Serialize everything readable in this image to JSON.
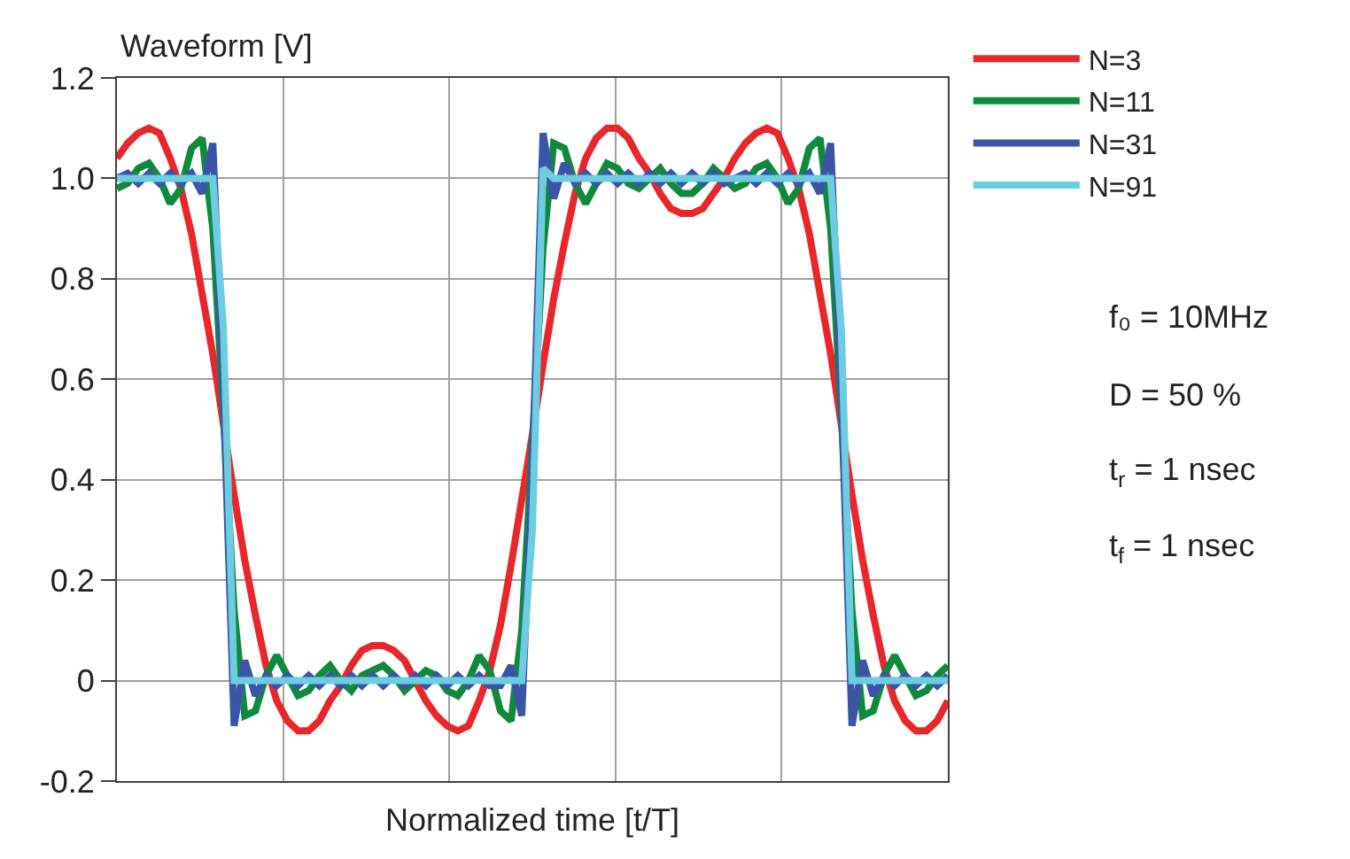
{
  "chart_data": {
    "type": "line",
    "xlabel": "Normalized time [t/T]",
    "ylabel": "Waveform [V]",
    "categories": [
      null,
      null,
      null,
      null,
      null,
      null,
      null,
      null,
      null,
      null,
      null,
      null,
      null,
      null,
      null,
      null,
      null,
      null,
      null,
      null,
      null,
      null,
      null,
      null,
      null,
      null,
      null,
      null,
      null,
      null,
      null,
      null,
      null,
      null,
      null,
      null,
      null,
      null,
      null,
      null,
      null,
      null,
      null,
      null,
      null,
      null,
      null,
      null,
      null,
      null,
      null,
      null,
      null,
      null,
      null,
      null,
      null,
      null,
      null,
      null,
      null,
      null,
      null,
      null,
      null,
      null,
      null,
      null,
      null,
      null,
      null,
      null,
      null,
      null,
      null,
      null,
      null,
      null,
      null
    ],
    "series": [
      {
        "name": "N=3",
        "color": "#e8262b",
        "values": [
          1.04,
          1.07,
          1.09,
          1.1,
          1.09,
          1.04,
          0.98,
          0.89,
          0.77,
          0.65,
          0.51,
          0.37,
          0.24,
          0.13,
          0.03,
          -0.04,
          -0.08,
          -0.1,
          -0.1,
          -0.08,
          -0.04,
          -0.01,
          0.03,
          0.06,
          0.07,
          0.07,
          0.06,
          0.04,
          0.0,
          -0.04,
          -0.07,
          -0.09,
          -0.1,
          -0.09,
          -0.04,
          0.02,
          0.11,
          0.23,
          0.36,
          0.49,
          0.63,
          0.76,
          0.87,
          0.97,
          1.04,
          1.08,
          1.1,
          1.1,
          1.08,
          1.04,
          1.01,
          0.97,
          0.94,
          0.93,
          0.93,
          0.94,
          0.97,
          1.0,
          1.04,
          1.07,
          1.09,
          1.1,
          1.09,
          1.04,
          0.98,
          0.89,
          0.77,
          0.65,
          0.51,
          0.37,
          0.24,
          0.13,
          0.03,
          -0.04,
          -0.08,
          -0.1,
          -0.1,
          -0.08,
          -0.04
        ]
      },
      {
        "name": "N=11",
        "color": "#0f8a3c",
        "values": [
          0.98,
          0.99,
          1.02,
          1.03,
          1.0,
          0.95,
          0.98,
          1.06,
          1.08,
          0.9,
          0.53,
          0.14,
          -0.07,
          -0.06,
          0.01,
          0.05,
          0.01,
          -0.03,
          -0.02,
          0.01,
          0.03,
          0.0,
          -0.02,
          0.01,
          0.02,
          0.03,
          0.01,
          -0.02,
          0.0,
          0.02,
          0.01,
          -0.02,
          -0.03,
          0.0,
          0.05,
          0.02,
          -0.06,
          -0.08,
          0.1,
          0.47,
          0.86,
          1.07,
          1.06,
          0.99,
          0.95,
          0.99,
          1.03,
          1.02,
          0.99,
          0.98,
          1.0,
          1.02,
          0.99,
          0.97,
          0.97,
          0.99,
          1.02,
          1.0,
          0.98,
          0.99,
          1.02,
          1.03,
          1.0,
          0.95,
          0.98,
          1.06,
          1.08,
          0.9,
          0.53,
          0.14,
          -0.07,
          -0.06,
          0.01,
          0.05,
          0.01,
          -0.03,
          -0.02,
          0.01,
          0.03
        ]
      },
      {
        "name": "N=31",
        "color": "#3a55a8",
        "values": [
          1.0,
          1.01,
          0.99,
          1.01,
          0.99,
          1.01,
          0.99,
          1.01,
          0.97,
          1.07,
          0.57,
          -0.09,
          0.04,
          -0.03,
          0.01,
          -0.01,
          0.01,
          -0.01,
          0.01,
          -0.01,
          0.01,
          -0.01,
          0.01,
          -0.01,
          0.01,
          -0.01,
          0.01,
          -0.01,
          0.01,
          -0.01,
          0.01,
          -0.01,
          0.01,
          -0.01,
          0.01,
          -0.01,
          -0.01,
          0.03,
          -0.07,
          0.43,
          1.09,
          0.96,
          1.03,
          0.99,
          1.01,
          0.99,
          1.01,
          0.99,
          1.01,
          0.99,
          1.01,
          0.99,
          1.01,
          0.99,
          1.01,
          0.99,
          1.01,
          0.99,
          1.0,
          1.01,
          0.99,
          1.01,
          0.99,
          1.01,
          0.99,
          1.01,
          0.97,
          1.07,
          0.57,
          -0.09,
          0.04,
          -0.03,
          0.01,
          -0.01,
          0.01,
          -0.01,
          0.01,
          -0.01,
          0.01
        ]
      },
      {
        "name": "N=91",
        "color": "#6dcde0",
        "values": [
          1.0,
          1.0,
          1.0,
          1.0,
          1.0,
          1.0,
          1.0,
          1.0,
          1.0,
          1.0,
          0.7,
          0.0,
          0.0,
          0.0,
          0.0,
          0.0,
          0.0,
          0.0,
          0.0,
          0.0,
          0.0,
          0.0,
          0.0,
          0.0,
          0.0,
          0.0,
          0.0,
          0.0,
          0.0,
          0.0,
          0.0,
          0.0,
          0.0,
          0.0,
          0.0,
          0.0,
          0.0,
          0.0,
          0.0,
          0.3,
          1.02,
          1.0,
          1.0,
          1.0,
          1.0,
          1.0,
          1.0,
          1.0,
          1.0,
          1.0,
          1.0,
          1.0,
          1.0,
          1.0,
          1.0,
          1.0,
          1.0,
          1.0,
          1.0,
          1.0,
          1.0,
          1.0,
          1.0,
          1.0,
          1.0,
          1.0,
          1.0,
          1.0,
          0.7,
          0.0,
          0.0,
          0.0,
          0.0,
          0.0,
          0.0,
          0.0,
          0.0,
          0.0,
          0.0
        ]
      }
    ],
    "ylim": [
      -0.2,
      1.2
    ],
    "yticks": [
      -0.2,
      {
        "value": 0,
        "label": "0"
      },
      0.2,
      0.4,
      0.6,
      0.8,
      {
        "value": 1.0,
        "label": "1.0"
      },
      1.2
    ],
    "tick_labels": "y",
    "grid": true,
    "legend": "top right",
    "marker": "none",
    "line_style": "solid",
    "annotations": [
      "f₀ = 10MHz",
      "D = 50 %",
      "t$_{r}$ = 1 nsec",
      "t$_{f}$ = 1 nsec"
    ]
  }
}
